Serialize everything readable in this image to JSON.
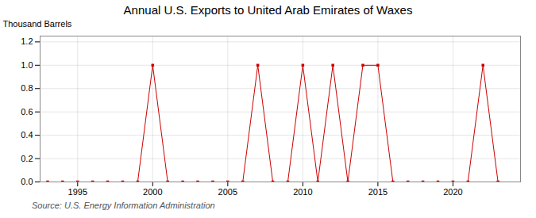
{
  "chart_data": {
    "type": "line",
    "title": "Annual U.S. Exports to United Arab Emirates of Waxes",
    "y_label": "Thousand Barrels",
    "annotations": [
      "Source: U.S. Energy Information Administration"
    ],
    "x": [
      1993,
      1994,
      1995,
      1996,
      1997,
      1998,
      1999,
      2000,
      2001,
      2002,
      2003,
      2004,
      2005,
      2006,
      2007,
      2008,
      2009,
      2010,
      2011,
      2012,
      2013,
      2014,
      2015,
      2016,
      2017,
      2018,
      2019,
      2020,
      2021,
      2022,
      2023
    ],
    "values": [
      0,
      0,
      0,
      0,
      0,
      0,
      0,
      1,
      0,
      0,
      0,
      0,
      0,
      0,
      1,
      0,
      0,
      1,
      0,
      1,
      0,
      1,
      1,
      0,
      0,
      0,
      0,
      0,
      0,
      1,
      0
    ],
    "color": "#cc0000",
    "marker": "square",
    "line_style": "solid",
    "xlim": [
      1992.5,
      2024.5
    ],
    "xticks": [
      1995,
      2000,
      2005,
      2010,
      2015,
      2020
    ],
    "ylim": [
      0,
      1.25
    ],
    "yticks": [
      {
        "value": 0,
        "label": "0.0"
      },
      0.2,
      0.4,
      0.6,
      0.8,
      {
        "value": 1,
        "label": "1.0"
      },
      1.2
    ],
    "grid": true
  }
}
